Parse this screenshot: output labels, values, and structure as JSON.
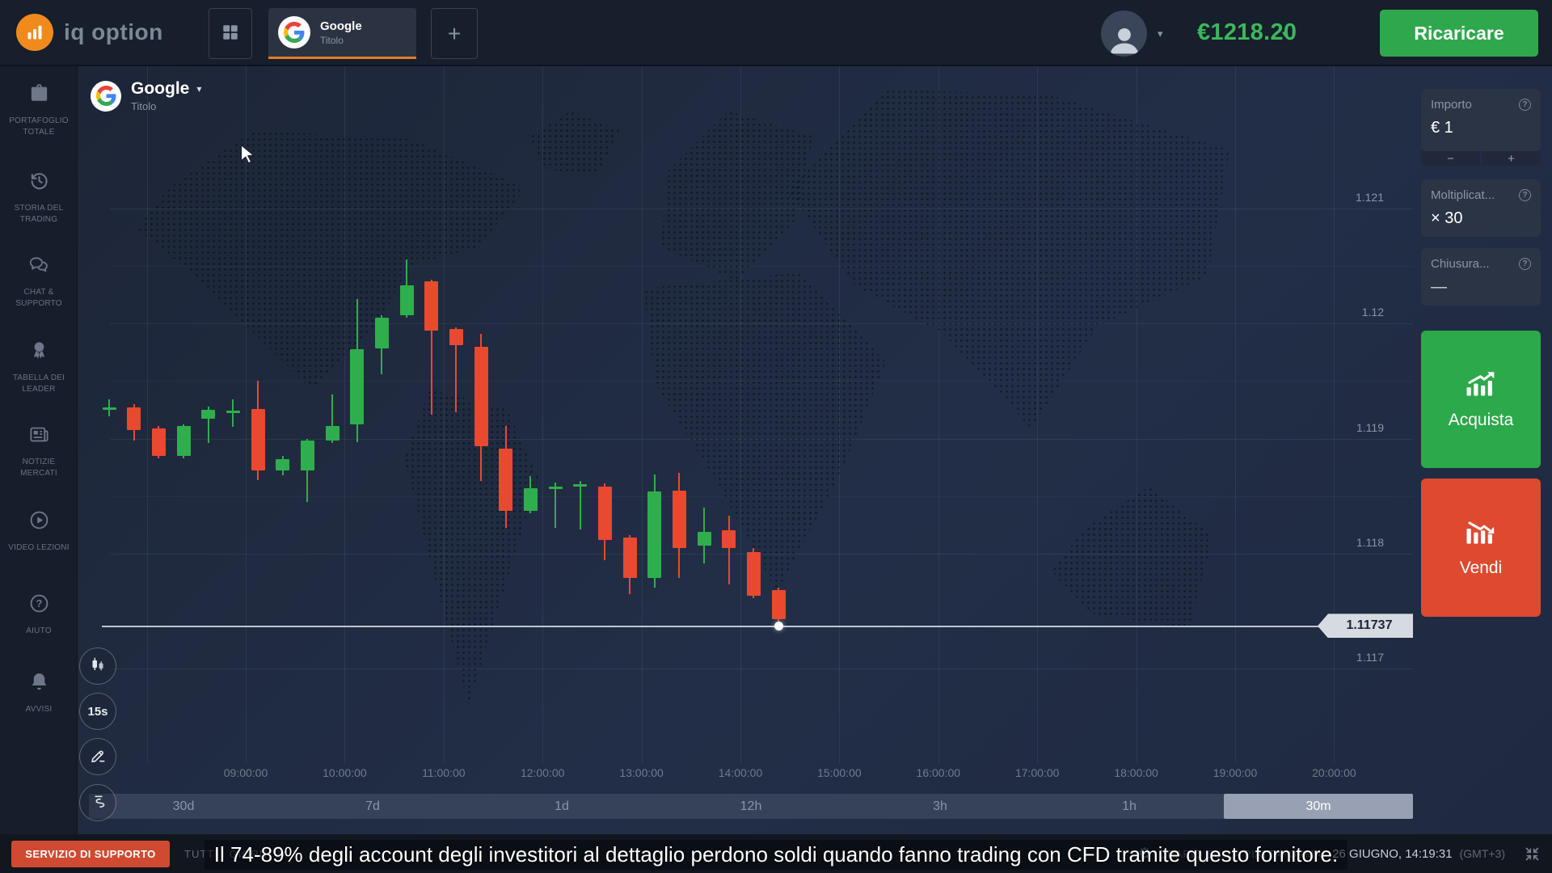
{
  "topbar": {
    "logo_text": "iq option",
    "tab": {
      "title": "Google",
      "subtitle": "Titolo"
    },
    "add_label": "+",
    "balance": "€1218.20",
    "deposit_label": "Ricaricare"
  },
  "glyphs": {
    "caret": "▾",
    "minus": "−",
    "plus": "+",
    "question": "?",
    "gear": "⚙"
  },
  "sidebar": {
    "items": [
      {
        "icon": "portfolio-icon",
        "label": "PORTAFOGLIO\nTOTALE"
      },
      {
        "icon": "history-icon",
        "label": "STORIA DEL\nTRADING"
      },
      {
        "icon": "chat-icon",
        "label": "CHAT &\nSUPPORTO"
      },
      {
        "icon": "leaderboard-icon",
        "label": "TABELLA DEI\nLEADER"
      },
      {
        "icon": "news-icon",
        "label": "NOTIZIE\nMERCATI"
      },
      {
        "icon": "video-icon",
        "label": "VIDEO LEZIONI"
      },
      {
        "icon": "help-icon",
        "label": "AIUTO"
      },
      {
        "icon": "alerts-icon",
        "label": "AVVISI"
      }
    ]
  },
  "chart": {
    "header": {
      "title": "Google",
      "subtitle": "Titolo"
    },
    "interval_label": "15s",
    "ranges": [
      "30d",
      "7d",
      "1d",
      "12h",
      "3h",
      "1h",
      "30m"
    ],
    "selected_range": "30m",
    "current_price_label": "1.11737"
  },
  "chart_data": {
    "type": "candlestick",
    "title": "Google (Titolo) CFD",
    "y_ticks": {
      "labels": [
        "1.121",
        "1.12",
        "1.119",
        "1.118",
        "1.117"
      ],
      "values": [
        1.121,
        1.12,
        1.119,
        1.118,
        1.117
      ]
    },
    "minor_gridlines": [
      1.1205,
      1.1195,
      1.1185
    ],
    "x_labels": [
      "09:00:00",
      "10:00:00",
      "11:00:00",
      "12:00:00",
      "13:00:00",
      "14:00:00",
      "15:00:00",
      "16:00:00",
      "17:00:00",
      "18:00:00",
      "19:00:00",
      "20:00:00"
    ],
    "current_price": 1.11737,
    "ylim": [
      1.1166,
      1.1216
    ],
    "candles": [
      {
        "o": 1.11927,
        "h": 1.11934,
        "l": 1.11919,
        "c": 1.11927
      },
      {
        "o": 1.11927,
        "h": 1.1193,
        "l": 1.11898,
        "c": 1.11907
      },
      {
        "o": 1.11909,
        "h": 1.11911,
        "l": 1.11883,
        "c": 1.11885
      },
      {
        "o": 1.11885,
        "h": 1.11912,
        "l": 1.11883,
        "c": 1.11911
      },
      {
        "o": 1.11917,
        "h": 1.11928,
        "l": 1.11896,
        "c": 1.11925
      },
      {
        "o": 1.11924,
        "h": 1.11934,
        "l": 1.1191,
        "c": 1.11924
      },
      {
        "o": 1.11926,
        "h": 1.1195,
        "l": 1.11864,
        "c": 1.11872
      },
      {
        "o": 1.11872,
        "h": 1.11885,
        "l": 1.11868,
        "c": 1.11882
      },
      {
        "o": 1.11872,
        "h": 1.119,
        "l": 1.11845,
        "c": 1.11898
      },
      {
        "o": 1.11898,
        "h": 1.11938,
        "l": 1.11896,
        "c": 1.11911
      },
      {
        "o": 1.11912,
        "h": 1.12021,
        "l": 1.11897,
        "c": 1.11978
      },
      {
        "o": 1.11978,
        "h": 1.12007,
        "l": 1.11956,
        "c": 1.12005
      },
      {
        "o": 1.12007,
        "h": 1.12056,
        "l": 1.12005,
        "c": 1.12033
      },
      {
        "o": 1.12037,
        "h": 1.12038,
        "l": 1.11921,
        "c": 1.11994
      },
      {
        "o": 1.11995,
        "h": 1.11997,
        "l": 1.11923,
        "c": 1.11981
      },
      {
        "o": 1.1198,
        "h": 1.11991,
        "l": 1.11863,
        "c": 1.11893
      },
      {
        "o": 1.11891,
        "h": 1.11911,
        "l": 1.11822,
        "c": 1.11837
      },
      {
        "o": 1.11837,
        "h": 1.11867,
        "l": 1.11835,
        "c": 1.11857
      },
      {
        "o": 1.11858,
        "h": 1.11862,
        "l": 1.11822,
        "c": 1.11858
      },
      {
        "o": 1.1186,
        "h": 1.11863,
        "l": 1.11821,
        "c": 1.1186
      },
      {
        "o": 1.11858,
        "h": 1.11861,
        "l": 1.11794,
        "c": 1.11812
      },
      {
        "o": 1.11814,
        "h": 1.11816,
        "l": 1.11765,
        "c": 1.11779
      },
      {
        "o": 1.11779,
        "h": 1.11869,
        "l": 1.1177,
        "c": 1.11854
      },
      {
        "o": 1.11855,
        "h": 1.1187,
        "l": 1.11779,
        "c": 1.11805
      },
      {
        "o": 1.11807,
        "h": 1.1184,
        "l": 1.11791,
        "c": 1.11819
      },
      {
        "o": 1.1182,
        "h": 1.11833,
        "l": 1.11773,
        "c": 1.11805
      },
      {
        "o": 1.11801,
        "h": 1.11805,
        "l": 1.11761,
        "c": 1.11763
      },
      {
        "o": 1.11768,
        "h": 1.1177,
        "l": 1.11735,
        "c": 1.11743
      }
    ]
  },
  "trade_panel": {
    "amount": {
      "label": "Importo",
      "value": "€ 1"
    },
    "multiplier": {
      "label": "Moltiplicat...",
      "value": "× 30"
    },
    "closure": {
      "label": "Chiusura...",
      "value": "—"
    },
    "buy_label": "Acquista",
    "sell_label": "Vendi"
  },
  "bottombar": {
    "support_button": "SERVIZIO DI SUPPORTO",
    "support_hours": "TUTTI I GIORNI 24/7",
    "platform_time_label": "ORARIO SULLA PIATTAFORMA:",
    "platform_time": "26 GIUGNO, 14:19:31",
    "timezone": "(GMT+3)"
  },
  "disclaimer": "Il 74-89% degli account degli investitori al dettaglio perdono soldi quando fanno trading con CFD tramite questo fornitore.",
  "colors": {
    "bull": "#2fae4d",
    "bear": "#e8492f",
    "balance_green": "#3cb75b",
    "accent_orange": "#e17d26",
    "buy_button": "#2ca94a",
    "sell_button": "#dd4a30",
    "deposit_button": "#2fa84d",
    "support_button": "#d04a31",
    "price_tag_bg": "#d6dbe2"
  }
}
